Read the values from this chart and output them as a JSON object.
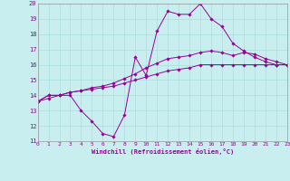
{
  "xlabel": "Windchill (Refroidissement éolien,°C)",
  "bg_color": "#c8eef0",
  "grid_color": "#aadddd",
  "line_color": "#990099",
  "x_hours": [
    0,
    1,
    2,
    3,
    4,
    5,
    6,
    7,
    8,
    9,
    10,
    11,
    12,
    13,
    14,
    15,
    16,
    17,
    18,
    19,
    20,
    21,
    22,
    23
  ],
  "curve1_y": [
    13.6,
    14.0,
    14.0,
    14.0,
    13.0,
    12.3,
    11.5,
    11.3,
    12.7,
    16.5,
    15.3,
    18.2,
    19.5,
    19.3,
    19.3,
    20.0,
    19.0,
    18.5,
    17.4,
    16.9,
    16.5,
    16.2,
    16.0,
    16.0
  ],
  "curve2_y": [
    13.6,
    14.0,
    14.0,
    14.2,
    14.3,
    14.5,
    14.6,
    14.8,
    15.1,
    15.4,
    15.8,
    16.1,
    16.4,
    16.5,
    16.6,
    16.8,
    16.9,
    16.8,
    16.6,
    16.8,
    16.7,
    16.4,
    16.2,
    16.0
  ],
  "curve3_y": [
    13.6,
    13.8,
    14.0,
    14.2,
    14.3,
    14.4,
    14.5,
    14.6,
    14.8,
    15.0,
    15.2,
    15.4,
    15.6,
    15.7,
    15.8,
    16.0,
    16.0,
    16.0,
    16.0,
    16.0,
    16.0,
    16.0,
    16.0,
    16.0
  ],
  "ylim": [
    11,
    20
  ],
  "xlim": [
    0,
    23
  ],
  "yticks": [
    11,
    12,
    13,
    14,
    15,
    16,
    17,
    18,
    19,
    20
  ],
  "xticks": [
    0,
    1,
    2,
    3,
    4,
    5,
    6,
    7,
    8,
    9,
    10,
    11,
    12,
    13,
    14,
    15,
    16,
    17,
    18,
    19,
    20,
    21,
    22,
    23
  ]
}
